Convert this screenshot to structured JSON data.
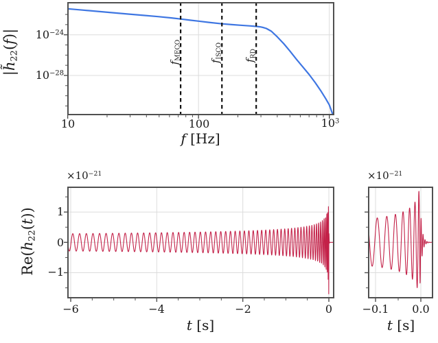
{
  "colors": {
    "fd_line": "#3e76e2",
    "td_line": "#c32148",
    "spine": "#4f4f4f",
    "grid": "#dcdcdc",
    "vline": "#111111",
    "text": "#1a1a1a"
  },
  "top": {
    "ylabel_parts": [
      {
        "t": "|",
        "s": "r"
      },
      {
        "t": "h̃",
        "s": "i"
      },
      {
        "t": "22",
        "s": "sb"
      },
      {
        "t": "(",
        "s": "r"
      },
      {
        "t": "f",
        "s": "i"
      },
      {
        "t": ")|",
        "s": "r"
      }
    ],
    "xlabel_parts": [
      {
        "t": "f",
        "s": "i"
      },
      {
        "t": " [Hz]",
        "s": "r"
      }
    ],
    "xtick_labels": [
      [
        {
          "t": "10",
          "s": "r"
        }
      ],
      [
        {
          "t": "100",
          "s": "r"
        }
      ],
      [
        {
          "t": "10",
          "s": "r"
        },
        {
          "t": "3",
          "s": "sp"
        }
      ]
    ],
    "ytick_labels": [
      [
        {
          "t": "10",
          "s": "r"
        },
        {
          "t": "−24",
          "s": "sp"
        }
      ],
      [
        {
          "t": "10",
          "s": "r"
        },
        {
          "t": "−28",
          "s": "sp"
        }
      ]
    ],
    "vline_labels": [
      [
        {
          "t": "f",
          "s": "i"
        },
        {
          "t": "MECO",
          "s": "sb"
        }
      ],
      [
        {
          "t": "f",
          "s": "i"
        },
        {
          "t": "ISCO",
          "s": "sb"
        }
      ],
      [
        {
          "t": "f",
          "s": "i"
        },
        {
          "t": "RD",
          "s": "sb"
        }
      ]
    ]
  },
  "bottom_left": {
    "offset_parts": [
      {
        "t": "×10",
        "s": "r"
      },
      {
        "t": "−21",
        "s": "sp"
      }
    ],
    "ylabel_parts": [
      {
        "t": "Re(",
        "s": "r"
      },
      {
        "t": "h",
        "s": "i"
      },
      {
        "t": "22",
        "s": "sb"
      },
      {
        "t": "(",
        "s": "r"
      },
      {
        "t": "t",
        "s": "i"
      },
      {
        "t": "))",
        "s": "r"
      }
    ],
    "xlabel_parts": [
      {
        "t": "t",
        "s": "i"
      },
      {
        "t": " [s]",
        "s": "r"
      }
    ],
    "ytick_labels": [
      "1",
      "0",
      "−1"
    ],
    "xtick_labels": [
      "−6",
      "−4",
      "−2",
      "0"
    ]
  },
  "bottom_right": {
    "offset_parts": [
      {
        "t": "×10",
        "s": "r"
      },
      {
        "t": "−21",
        "s": "sp"
      }
    ],
    "xlabel_parts": [
      {
        "t": "t",
        "s": "i"
      },
      {
        "t": " [s]",
        "s": "r"
      }
    ],
    "xtick_labels": [
      "−0.1",
      "0.0"
    ]
  },
  "chart_data": [
    {
      "id": "frequency_domain",
      "type": "line",
      "title": "",
      "xlabel": "f [Hz]",
      "ylabel": "|h~22(f)|",
      "xscale": "log",
      "yscale": "log",
      "xlim": [
        10,
        1100
      ],
      "ylim_log10": [
        -31.95,
        -20.82
      ],
      "xticks": [
        10,
        100,
        1000
      ],
      "yticks_log10": [
        -24,
        -28
      ],
      "grid": true,
      "legend": false,
      "line_color": "#3e76e2",
      "series": {
        "f_Hz": [
          10,
          13,
          17,
          22,
          29,
          38,
          49,
          62,
          73,
          86,
          100,
          120,
          151,
          180,
          210,
          250,
          276,
          295,
          310,
          330,
          360,
          400,
          450,
          500,
          560,
          630,
          700,
          780,
          860,
          940,
          1000,
          1060
        ],
        "log10_amp": [
          -21.44,
          -21.57,
          -21.7,
          -21.83,
          -21.96,
          -22.09,
          -22.21,
          -22.34,
          -22.45,
          -22.56,
          -22.66,
          -22.78,
          -22.92,
          -23.0,
          -23.06,
          -23.13,
          -23.18,
          -23.22,
          -23.27,
          -23.38,
          -23.65,
          -24.2,
          -24.9,
          -25.6,
          -26.4,
          -27.2,
          -27.9,
          -28.7,
          -29.5,
          -30.3,
          -30.9,
          -31.8
        ]
      },
      "vlines": [
        {
          "name": "f_MECO",
          "f_Hz": 73,
          "style": "dashed"
        },
        {
          "name": "f_ISCO",
          "f_Hz": 151,
          "style": "dashed"
        },
        {
          "name": "f_RD",
          "f_Hz": 276,
          "style": "dashed"
        }
      ]
    },
    {
      "id": "time_domain",
      "type": "line",
      "xlabel": "t [s]",
      "ylabel": "Re(h22(t))",
      "y_offset_factor": "1e-21",
      "xlim": [
        -6.08,
        0.127
      ],
      "ylim_1e21": [
        -1.85,
        1.84
      ],
      "xticks": [
        -6,
        -4,
        -2,
        0
      ],
      "yticks_1e21": [
        -1,
        0,
        1
      ],
      "grid": true,
      "line_color": "#c32148",
      "envelope_1e21": {
        "t_s": [
          -6,
          -4,
          -2,
          -1,
          -0.5,
          -0.2,
          -0.1,
          -0.05,
          -0.01,
          0
        ],
        "amp": [
          0.29,
          0.32,
          0.38,
          0.45,
          0.54,
          0.67,
          0.8,
          0.95,
          1.42,
          1.7
        ]
      },
      "apparent_cycle_freq_Hz": {
        "model": "C*(-t)^(-3/8)",
        "C": 12.3
      },
      "amp_model_1e21": {
        "model": "A*(-t)^(-1/4)",
        "A": 0.45,
        "cap": 1.7
      },
      "merger_time_s": 0,
      "peak_amp_1e21": 1.7,
      "ringdown": {
        "freq_Hz": 230,
        "decay_s": 0.004
      }
    },
    {
      "id": "time_domain_zoom",
      "type": "line",
      "xlabel": "t [s]",
      "y_offset_factor": "1e-21",
      "xlim": [
        -0.117,
        0.026
      ],
      "ylim_1e21": [
        -1.85,
        1.84
      ],
      "xticks": [
        -0.1,
        0.0
      ],
      "yticks_1e21": [
        -1,
        0,
        1
      ],
      "grid": true,
      "line_color": "#c32148",
      "apparent_cycle_freq_Hz": {
        "model": "C*(-t)^(-3/8)",
        "C": 18.9
      },
      "amp_model_1e21": {
        "model": "A*(-t)^(-1/4)",
        "A": 0.45,
        "cap": 1.7
      },
      "merger_time_s": 0,
      "ringdown": {
        "freq_Hz": 230,
        "decay_s": 0.004
      },
      "shares_y_with": "time_domain"
    }
  ]
}
